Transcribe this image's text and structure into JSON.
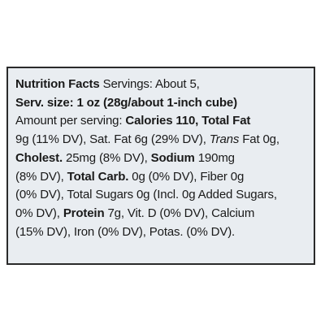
{
  "label": {
    "lines": [
      [
        {
          "text": "Nutrition Facts",
          "bold": true
        },
        {
          "text": " Servings: About 5,"
        }
      ],
      [
        {
          "text": "Serv. size: 1 oz (28g/about 1-inch cube)",
          "bold": true
        }
      ],
      [
        {
          "text": "Amount per serving: "
        },
        {
          "text": "Calories 110, Total Fat",
          "bold": true
        }
      ],
      [
        {
          "text": "9g (11% DV), Sat. Fat 6g (29% DV), "
        },
        {
          "text": "Trans",
          "italic": true
        },
        {
          "text": " Fat 0g,"
        }
      ],
      [
        {
          "text": "Cholest.",
          "bold": true
        },
        {
          "text": " 25mg (8% DV), "
        },
        {
          "text": "Sodium",
          "bold": true
        },
        {
          "text": " 190mg"
        }
      ],
      [
        {
          "text": "(8% DV), "
        },
        {
          "text": "Total Carb.",
          "bold": true
        },
        {
          "text": " 0g (0% DV), Fiber 0g"
        }
      ],
      [
        {
          "text": "(0% DV), Total Sugars 0g (Incl. 0g Added Sugars,"
        }
      ],
      [
        {
          "text": "0% DV), "
        },
        {
          "text": "Protein",
          "bold": true
        },
        {
          "text": " 7g, Vit. D (0% DV), Calcium"
        }
      ],
      [
        {
          "text": "(15% DV), Iron (0% DV), Potas. (0% DV)."
        }
      ]
    ]
  }
}
